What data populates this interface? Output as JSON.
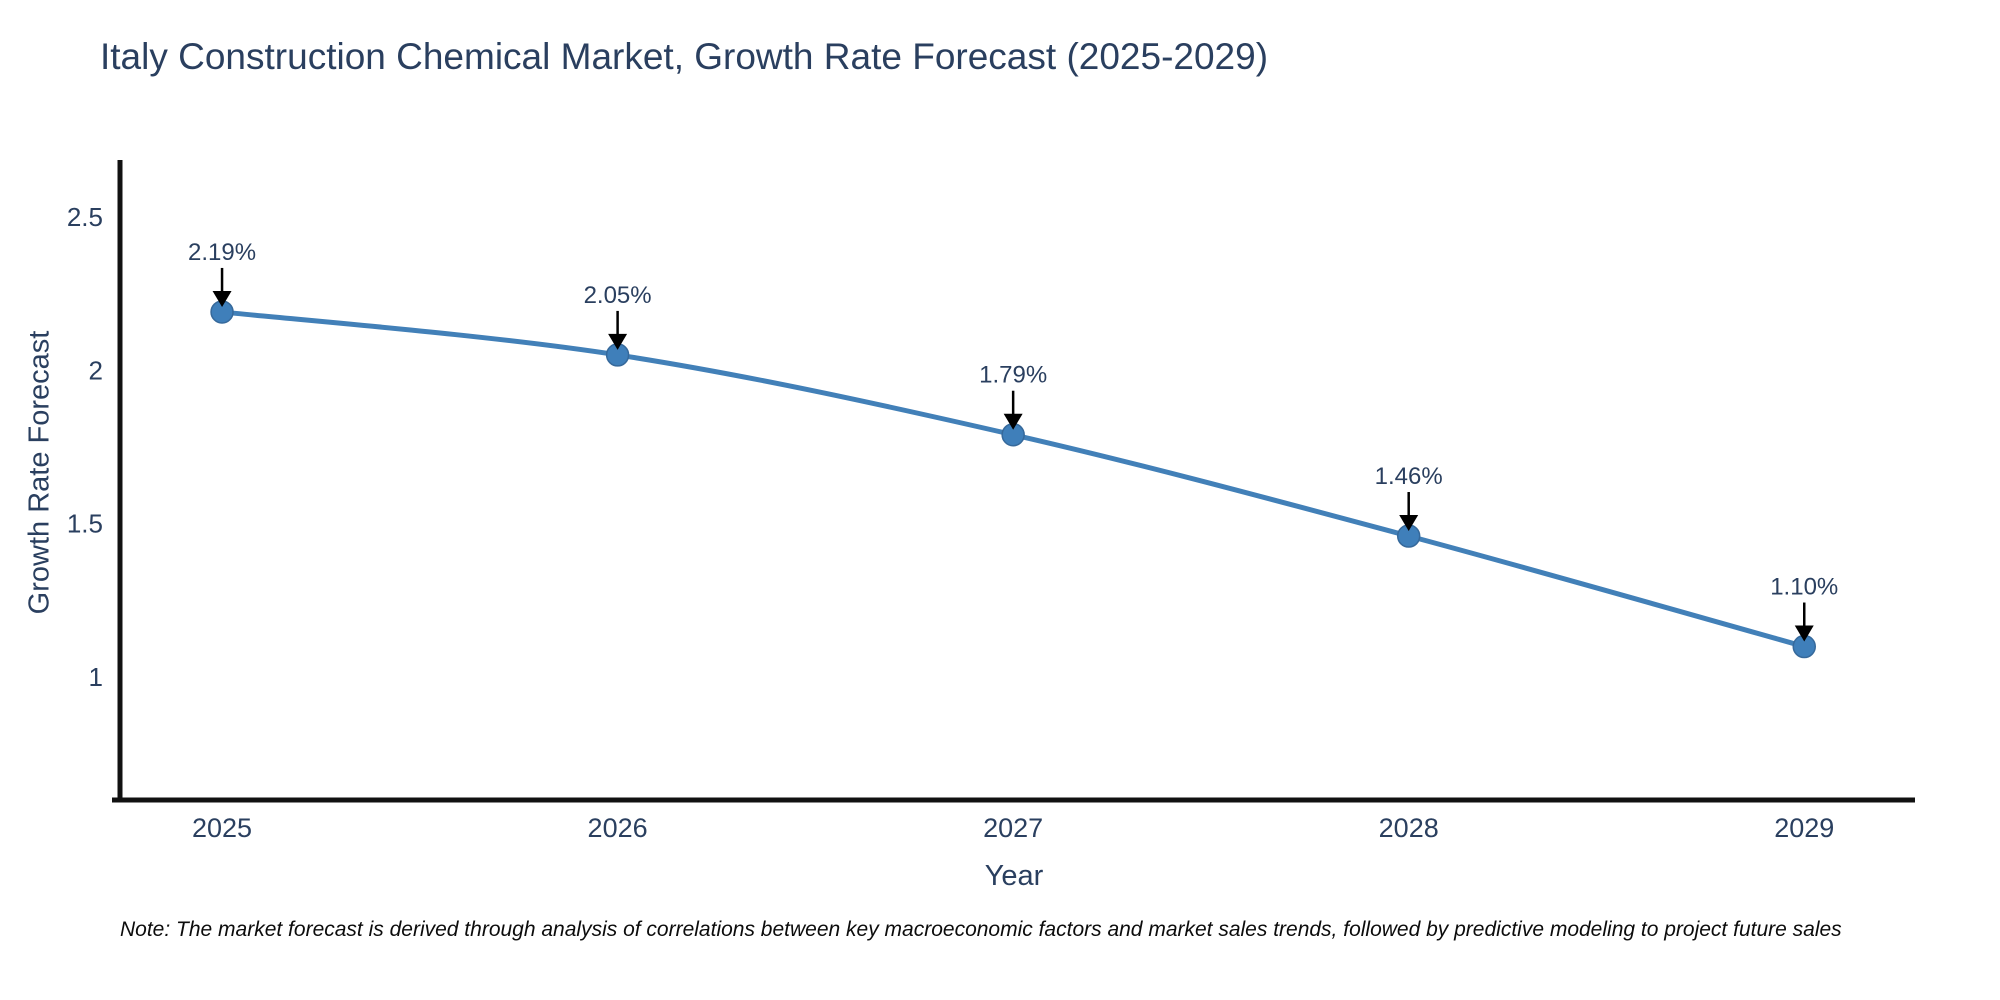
{
  "note": "Note: The market forecast is derived through analysis of correlations between key macroeconomic factors and market sales trends, followed by predictive modeling to project future sales",
  "chart_data": {
    "type": "line",
    "title": "Italy Construction Chemical Market, Growth Rate Forecast (2025-2029)",
    "xlabel": "Year",
    "ylabel": "Growth Rate Forecast",
    "x": [
      2025,
      2026,
      2027,
      2028,
      2029
    ],
    "values": [
      2.19,
      2.05,
      1.79,
      1.46,
      1.1
    ],
    "point_labels": [
      "2.19%",
      "2.05%",
      "1.79%",
      "1.46%",
      "1.10%"
    ],
    "xticks": [
      "2025",
      "2026",
      "2027",
      "2028",
      "2029"
    ],
    "yticks": [
      2.5,
      2,
      1.5,
      1
    ],
    "xlim": [
      2024.742,
      2029.28
    ],
    "ylim": [
      0.6,
      2.685
    ],
    "grid": false,
    "legend": null,
    "line_color": "#4280b8",
    "marker_color": "#3f7fba",
    "marker_edge_color": "#36699b",
    "axis_color": "#111111",
    "text_color": "#2a3f5f",
    "annotation_arrow_color": "#000000"
  }
}
